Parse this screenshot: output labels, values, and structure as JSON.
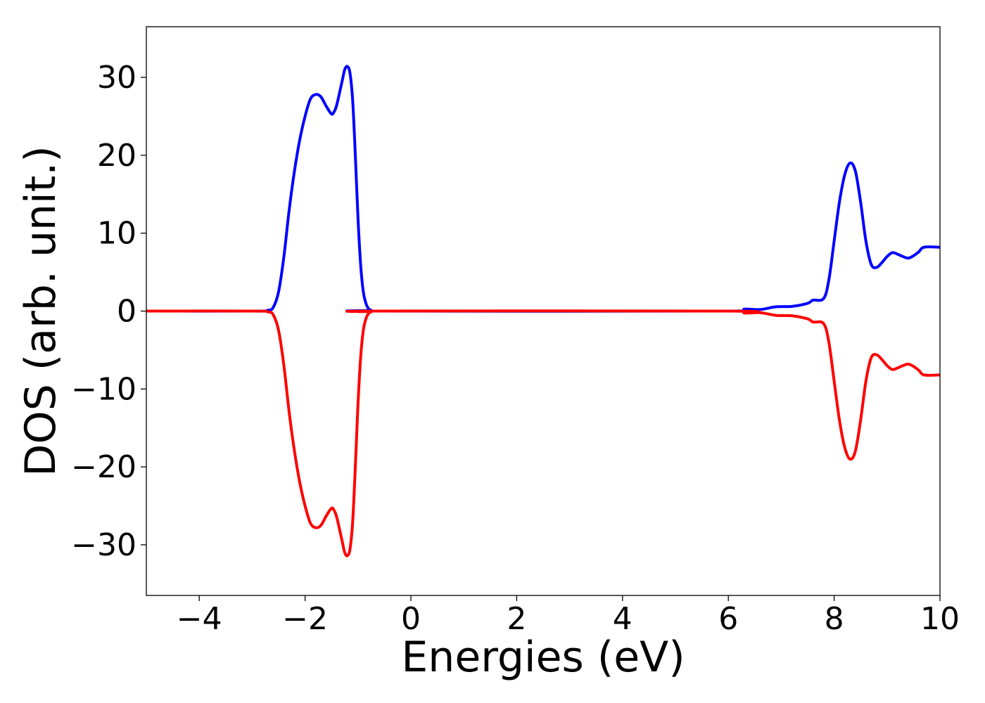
{
  "chart_data": {
    "type": "line",
    "title": "",
    "xlabel": "Energies (eV)",
    "ylabel": "DOS (arb. unit.)",
    "xlim": [
      -5,
      10
    ],
    "ylim": [
      -36.5,
      36.5
    ],
    "xticks": [
      -4,
      -2,
      0,
      2,
      4,
      6,
      8,
      10
    ],
    "yticks": [
      -30,
      -20,
      -10,
      0,
      10,
      20,
      30
    ],
    "xtick_labels": [
      "−4",
      "−2",
      "0",
      "2",
      "4",
      "6",
      "8",
      "10"
    ],
    "ytick_labels": [
      "−30",
      "−20",
      "−10",
      "0",
      "10",
      "20",
      "30"
    ],
    "grid": false,
    "legend": false,
    "series": [
      {
        "color": "#0000ff",
        "points": [
          [
            -5.0,
            0
          ],
          [
            -3.0,
            0
          ],
          [
            -2.7,
            0.1
          ],
          [
            -2.6,
            0.5
          ],
          [
            -2.5,
            2.5
          ],
          [
            -2.4,
            7
          ],
          [
            -2.3,
            13
          ],
          [
            -2.2,
            18
          ],
          [
            -2.1,
            22
          ],
          [
            -2.0,
            25
          ],
          [
            -1.9,
            27.2
          ],
          [
            -1.8,
            27.8
          ],
          [
            -1.7,
            27.5
          ],
          [
            -1.6,
            26.3
          ],
          [
            -1.5,
            25.3
          ],
          [
            -1.45,
            25.6
          ],
          [
            -1.4,
            26.5
          ],
          [
            -1.3,
            29.5
          ],
          [
            -1.25,
            31
          ],
          [
            -1.2,
            31.4
          ],
          [
            -1.15,
            30.5
          ],
          [
            -1.1,
            27
          ],
          [
            -1.05,
            20
          ],
          [
            -1.0,
            12
          ],
          [
            -0.95,
            6
          ],
          [
            -0.9,
            2.5
          ],
          [
            -0.85,
            1
          ],
          [
            -0.8,
            0.3
          ],
          [
            -0.75,
            0.1
          ],
          [
            -0.7,
            0
          ],
          [
            6.0,
            0
          ],
          [
            6.3,
            0.25
          ],
          [
            6.6,
            0.2
          ],
          [
            6.9,
            0.55
          ],
          [
            7.2,
            0.6
          ],
          [
            7.5,
            1.0
          ],
          [
            7.6,
            1.4
          ],
          [
            7.8,
            1.6
          ],
          [
            7.9,
            4
          ],
          [
            8.0,
            9
          ],
          [
            8.1,
            14
          ],
          [
            8.2,
            17.5
          ],
          [
            8.3,
            19
          ],
          [
            8.4,
            18
          ],
          [
            8.5,
            14
          ],
          [
            8.6,
            9
          ],
          [
            8.7,
            6
          ],
          [
            8.8,
            5.6
          ],
          [
            8.9,
            6.2
          ],
          [
            9.0,
            7
          ],
          [
            9.1,
            7.5
          ],
          [
            9.2,
            7.3
          ],
          [
            9.3,
            7
          ],
          [
            9.4,
            6.8
          ],
          [
            9.5,
            7.1
          ],
          [
            9.6,
            7.6
          ],
          [
            9.7,
            8.2
          ],
          [
            10.0,
            8.2
          ]
        ]
      },
      {
        "color": "#ff0000",
        "points": [
          [
            -5.0,
            0
          ],
          [
            -3.0,
            0
          ],
          [
            -2.7,
            -0.1
          ],
          [
            -2.6,
            -0.5
          ],
          [
            -2.5,
            -2.5
          ],
          [
            -2.4,
            -7
          ],
          [
            -2.3,
            -13
          ],
          [
            -2.2,
            -18
          ],
          [
            -2.1,
            -22
          ],
          [
            -2.0,
            -25
          ],
          [
            -1.9,
            -27.2
          ],
          [
            -1.8,
            -27.8
          ],
          [
            -1.7,
            -27.5
          ],
          [
            -1.6,
            -26.3
          ],
          [
            -1.5,
            -25.3
          ],
          [
            -1.45,
            -25.6
          ],
          [
            -1.4,
            -26.5
          ],
          [
            -1.3,
            -29.5
          ],
          [
            -1.25,
            -31
          ],
          [
            -1.2,
            -31.4
          ],
          [
            -1.15,
            -30.5
          ],
          [
            -1.1,
            -27
          ],
          [
            -1.05,
            -20
          ],
          [
            -1.0,
            -12
          ],
          [
            -0.95,
            -6
          ],
          [
            -0.9,
            -2.5
          ],
          [
            -0.85,
            -1
          ],
          [
            -0.8,
            -0.3
          ],
          [
            -0.75,
            -0.1
          ],
          [
            -0.7,
            0
          ],
          [
            6.0,
            0
          ],
          [
            6.3,
            -0.25
          ],
          [
            6.6,
            -0.2
          ],
          [
            6.9,
            -0.55
          ],
          [
            7.2,
            -0.6
          ],
          [
            7.5,
            -1.0
          ],
          [
            7.6,
            -1.4
          ],
          [
            7.8,
            -1.6
          ],
          [
            7.9,
            -4
          ],
          [
            8.0,
            -9
          ],
          [
            8.1,
            -14
          ],
          [
            8.2,
            -17.5
          ],
          [
            8.3,
            -19
          ],
          [
            8.4,
            -18
          ],
          [
            8.5,
            -14
          ],
          [
            8.6,
            -9
          ],
          [
            8.7,
            -6
          ],
          [
            8.8,
            -5.6
          ],
          [
            8.9,
            -6.2
          ],
          [
            9.0,
            -7
          ],
          [
            9.1,
            -7.5
          ],
          [
            9.2,
            -7.3
          ],
          [
            9.3,
            -7
          ],
          [
            9.4,
            -6.8
          ],
          [
            9.5,
            -7.1
          ],
          [
            9.6,
            -7.6
          ],
          [
            9.7,
            -8.2
          ],
          [
            10.0,
            -8.2
          ]
        ]
      }
    ]
  }
}
